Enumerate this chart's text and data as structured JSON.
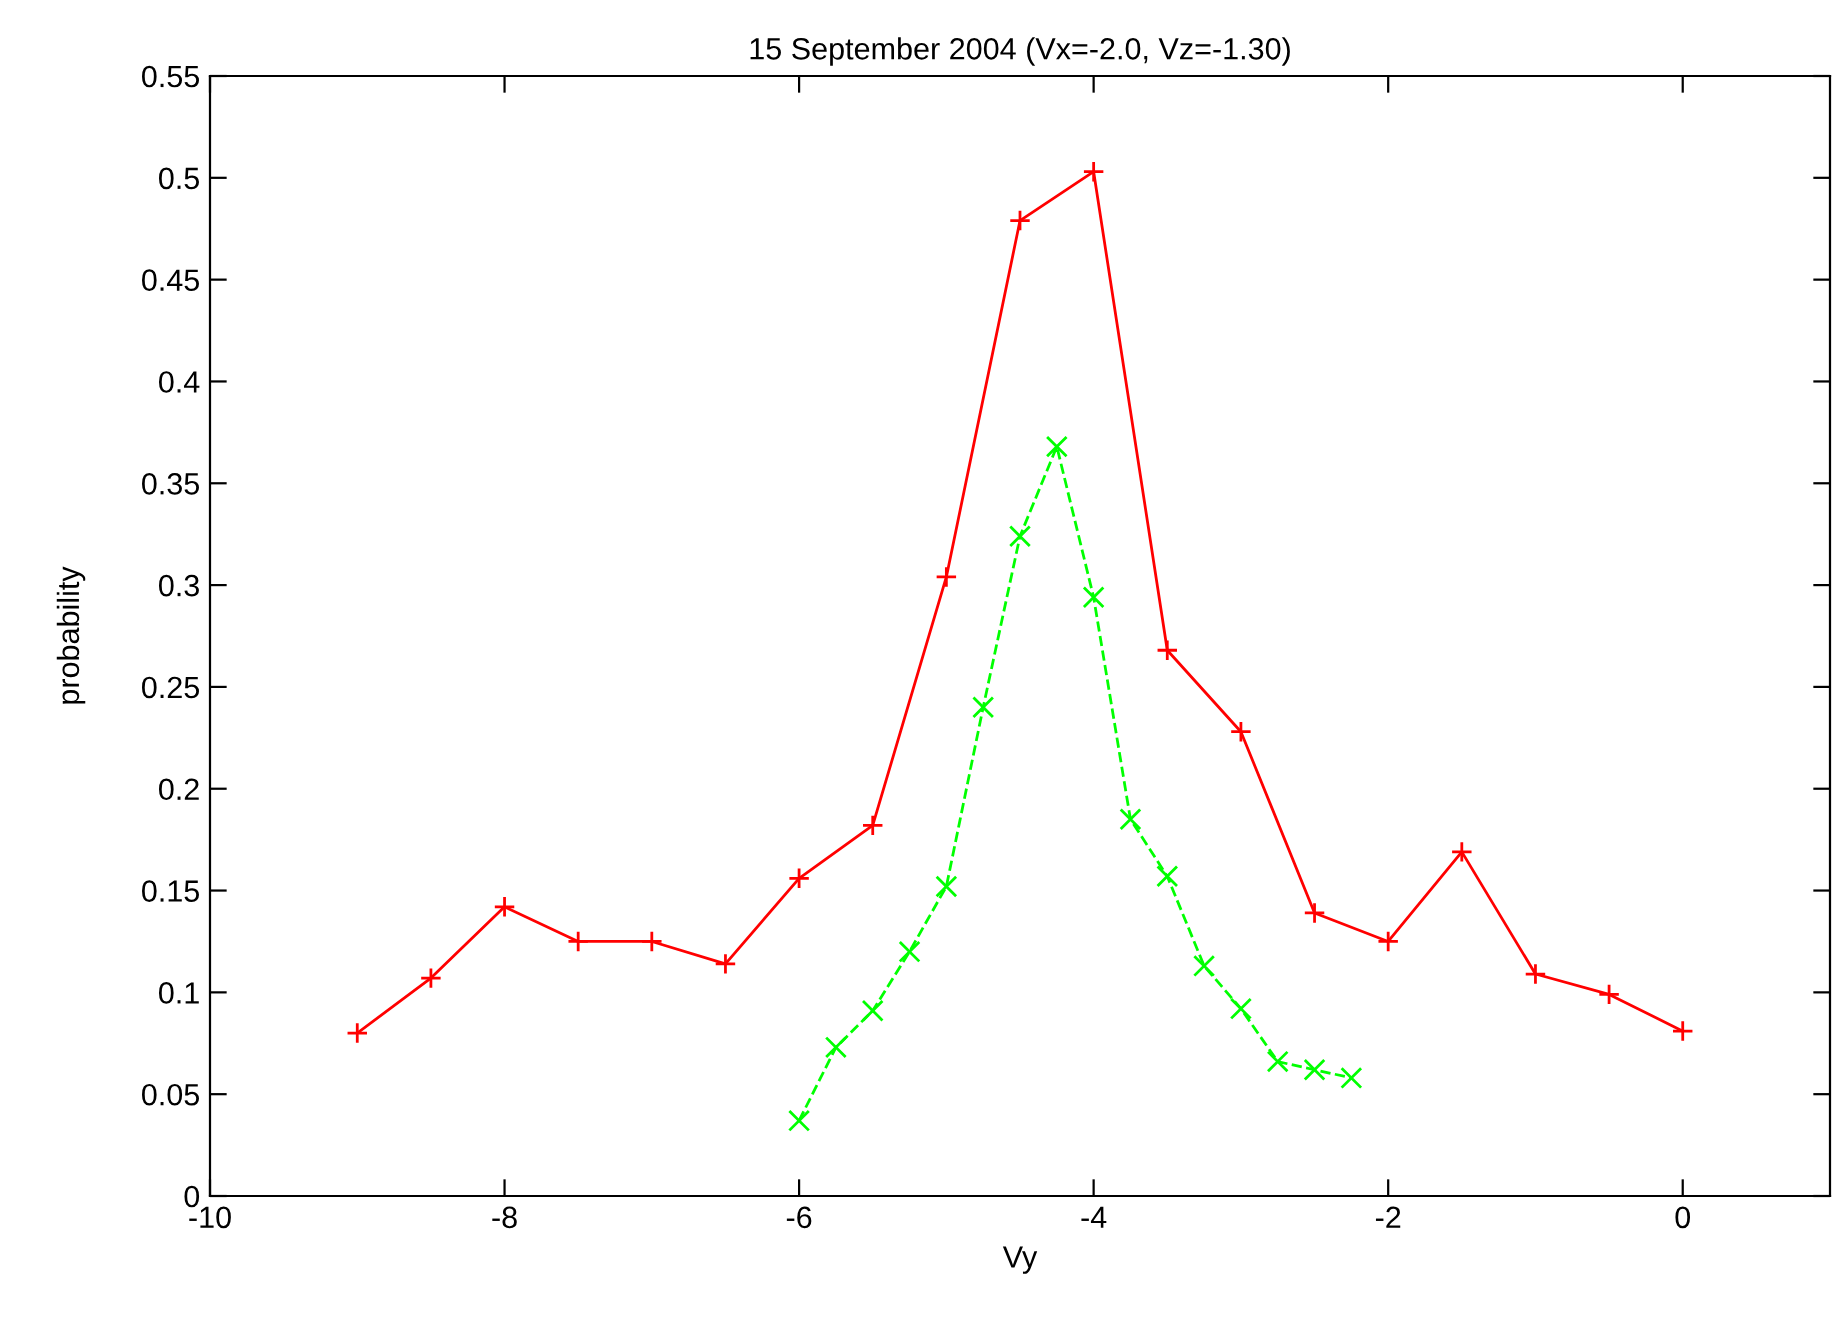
{
  "chart_data": {
    "type": "line",
    "title": "15 September 2004 (Vx=-2.0, Vz=-1.30)",
    "xlabel": "Vy",
    "ylabel": "probability",
    "xlim": [
      -10,
      1
    ],
    "xticks": [
      -10,
      -8,
      -6,
      -4,
      -2,
      0
    ],
    "ylim": [
      0,
      0.55
    ],
    "yticks": [
      0,
      0.05,
      0.1,
      0.15,
      0.2,
      0.25,
      0.3,
      0.35,
      0.4,
      0.45,
      0.5,
      0.55
    ],
    "series": [
      {
        "color": "#ff0000",
        "marker": "plus",
        "line_style": "solid",
        "x": [
          -9,
          -8.5,
          -8,
          -7.5,
          -7,
          -6.5,
          -6,
          -5.5,
          -5,
          -4.5,
          -4,
          -3.5,
          -3,
          -2.5,
          -2,
          -1.5,
          -1,
          -0.5,
          0
        ],
        "values": [
          0.08,
          0.107,
          0.142,
          0.125,
          0.125,
          0.114,
          0.156,
          0.182,
          0.304,
          0.479,
          0.503,
          0.268,
          0.228,
          0.139,
          0.125,
          0.169,
          0.109,
          0.099,
          0.081
        ]
      },
      {
        "color": "#00ff00",
        "marker": "cross",
        "line_style": "dashed",
        "x": [
          -6,
          -5.75,
          -5.5,
          -5.25,
          -5,
          -4.75,
          -4.5,
          -4.25,
          -4,
          -3.75,
          -3.5,
          -3.25,
          -3,
          -2.75,
          -2.5,
          -2.25
        ],
        "values": [
          0.037,
          0.073,
          0.091,
          0.12,
          0.152,
          0.24,
          0.324,
          0.368,
          0.294,
          0.185,
          0.157,
          0.113,
          0.092,
          0.066,
          0.062,
          0.058
        ]
      }
    ]
  }
}
